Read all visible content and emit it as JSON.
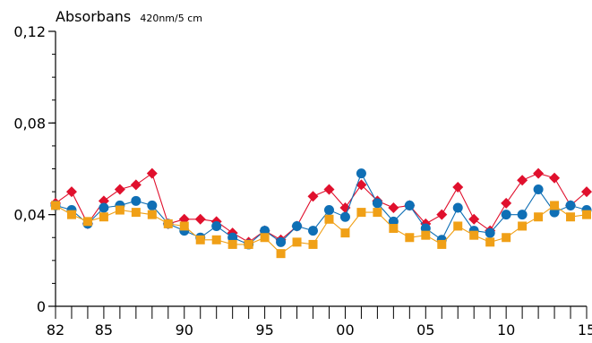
{
  "chart_data": {
    "type": "line",
    "ylabel": "Absorbans",
    "ylabel_unit": "420nm/5 cm",
    "ylim": [
      0,
      0.12
    ],
    "xlim": [
      1982,
      2015
    ],
    "y_ticks": [
      {
        "value": 0,
        "label": "0"
      },
      {
        "value": 0.04,
        "label": "0,04"
      },
      {
        "value": 0.08,
        "label": "0,08"
      },
      {
        "value": 0.12,
        "label": "0,12"
      }
    ],
    "y_minor_step": 0.01,
    "x_ticks": [
      {
        "value": 1982,
        "label": "82"
      },
      {
        "value": 1985,
        "label": "85"
      },
      {
        "value": 1990,
        "label": "90"
      },
      {
        "value": 1995,
        "label": "95"
      },
      {
        "value": 2000,
        "label": "00"
      },
      {
        "value": 2005,
        "label": "05"
      },
      {
        "value": 2010,
        "label": "10"
      },
      {
        "value": 2015,
        "label": "15"
      }
    ],
    "x": [
      1982,
      1983,
      1984,
      1985,
      1986,
      1987,
      1988,
      1989,
      1990,
      1991,
      1992,
      1993,
      1994,
      1995,
      1996,
      1997,
      1998,
      1999,
      2000,
      2001,
      2002,
      2003,
      2004,
      2005,
      2006,
      2007,
      2008,
      2009,
      2010,
      2011,
      2012,
      2013,
      2014,
      2015
    ],
    "series": [
      {
        "marker": "diamond",
        "color": "#e0102d",
        "values": [
          0.045,
          0.05,
          0.036,
          0.046,
          0.051,
          0.053,
          0.058,
          0.036,
          0.038,
          0.038,
          0.037,
          0.032,
          0.028,
          0.033,
          0.029,
          0.035,
          0.048,
          0.051,
          0.043,
          0.053,
          0.046,
          0.043,
          0.044,
          0.036,
          0.04,
          0.052,
          0.038,
          0.033,
          0.045,
          0.055,
          0.058,
          0.056,
          0.044,
          0.05
        ]
      },
      {
        "marker": "circle",
        "color": "#0f6fb5",
        "values": [
          0.044,
          0.042,
          0.036,
          0.043,
          0.044,
          0.046,
          0.044,
          0.036,
          0.033,
          0.03,
          0.035,
          0.03,
          0.027,
          0.033,
          0.028,
          0.035,
          0.033,
          0.042,
          0.039,
          0.058,
          0.045,
          0.037,
          0.044,
          0.034,
          0.029,
          0.043,
          0.033,
          0.032,
          0.04,
          0.04,
          0.051,
          0.041,
          0.044,
          0.042
        ]
      },
      {
        "marker": "square",
        "color": "#f0a017",
        "values": [
          0.044,
          0.04,
          0.037,
          0.039,
          0.042,
          0.041,
          0.04,
          0.036,
          0.035,
          0.029,
          0.029,
          0.027,
          0.027,
          0.03,
          0.023,
          0.028,
          0.027,
          0.038,
          0.032,
          0.041,
          0.041,
          0.034,
          0.03,
          0.031,
          0.027,
          0.035,
          0.031,
          0.028,
          0.03,
          0.035,
          0.039,
          0.044,
          0.039,
          0.04
        ]
      }
    ]
  }
}
